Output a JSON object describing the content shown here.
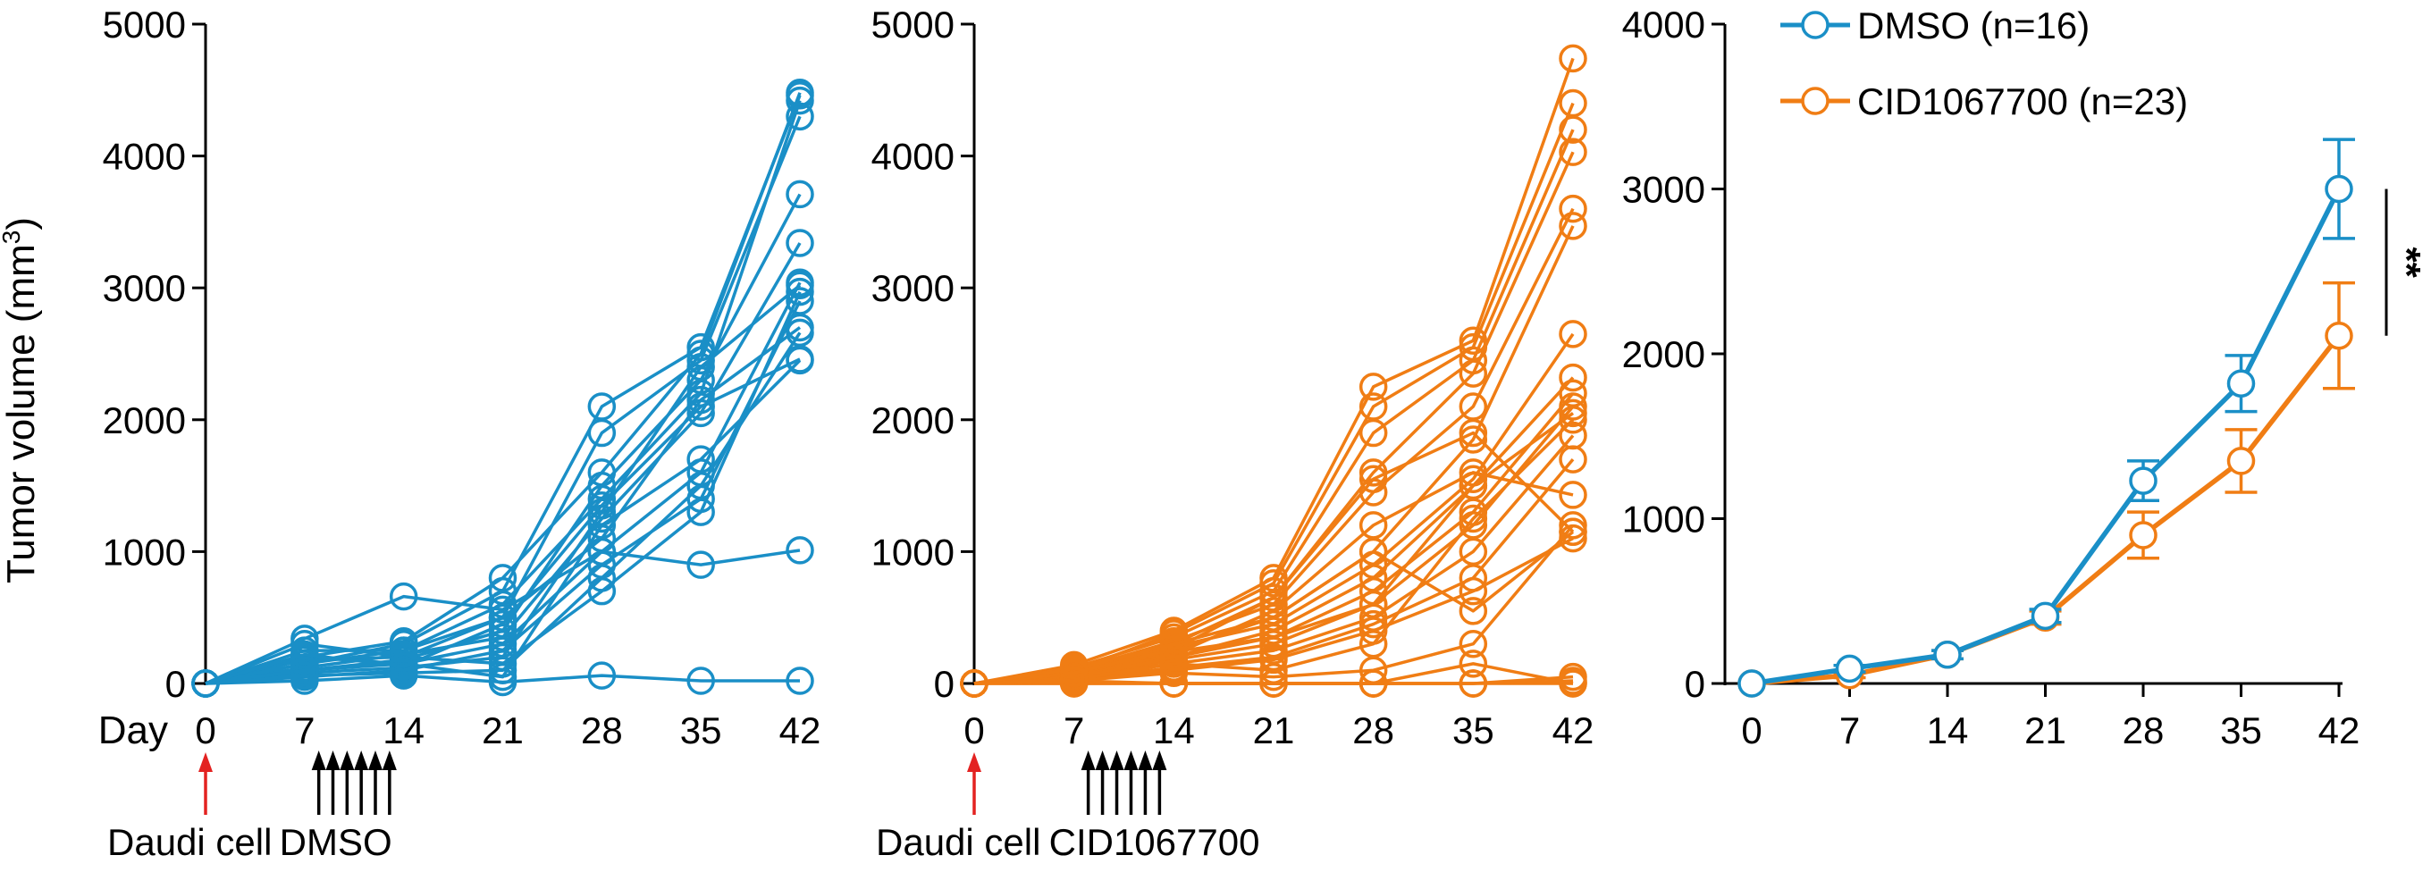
{
  "figure": {
    "ylabel_main": "Tumor volume (mm",
    "ylabel_sup": "3",
    "ylabel_close": ")",
    "day_label": "Day"
  },
  "colors": {
    "dmso": "#1a8fc7",
    "cid": "#f07d14",
    "arrow_red": "#e32221",
    "axis": "#000000"
  },
  "chart_data": [
    {
      "type": "line",
      "panel": "left",
      "color": "dmso",
      "x": [
        0,
        7,
        14,
        21,
        28,
        35,
        42
      ],
      "xlim": [
        0,
        42
      ],
      "ylim": [
        0,
        5000
      ],
      "yticks": [
        0,
        1000,
        2000,
        3000,
        4000,
        5000
      ],
      "grid": false,
      "annotation": {
        "cells": "Daudi cell",
        "treatment": "DMSO"
      },
      "treatment_days": [
        8,
        9,
        10,
        11,
        12,
        13
      ],
      "series": [
        {
          "values": [
            0,
            20,
            60,
            10,
            60,
            20,
            20
          ]
        },
        {
          "values": [
            0,
            340,
            660,
            560,
            1000,
            900,
            1010
          ]
        },
        {
          "values": [
            0,
            200,
            320,
            800,
            1600,
            2500,
            4480
          ]
        },
        {
          "values": [
            0,
            250,
            250,
            600,
            1400,
            2200,
            4420
          ]
        },
        {
          "values": [
            0,
            150,
            300,
            700,
            2100,
            2550,
            4460
          ]
        },
        {
          "values": [
            0,
            180,
            200,
            500,
            1900,
            2450,
            4300
          ]
        },
        {
          "values": [
            0,
            100,
            180,
            400,
            1500,
            2300,
            3710
          ]
        },
        {
          "values": [
            0,
            120,
            220,
            350,
            1250,
            2050,
            3340
          ]
        },
        {
          "values": [
            0,
            200,
            150,
            300,
            1000,
            1600,
            3040
          ]
        },
        {
          "values": [
            0,
            80,
            120,
            200,
            1300,
            2400,
            3020
          ]
        },
        {
          "values": [
            0,
            300,
            200,
            150,
            700,
            1300,
            2970
          ]
        },
        {
          "values": [
            0,
            50,
            100,
            250,
            900,
            1400,
            2900
          ]
        },
        {
          "values": [
            0,
            150,
            250,
            500,
            1100,
            2150,
            2700
          ]
        },
        {
          "values": [
            0,
            60,
            80,
            100,
            800,
            1500,
            2660
          ]
        },
        {
          "values": [
            0,
            100,
            150,
            50,
            1200,
            1700,
            2450
          ]
        },
        {
          "values": [
            0,
            220,
            130,
            450,
            1350,
            2100,
            2460
          ]
        }
      ]
    },
    {
      "type": "line",
      "panel": "middle",
      "color": "cid",
      "x": [
        0,
        7,
        14,
        21,
        28,
        35,
        42
      ],
      "xlim": [
        0,
        42
      ],
      "ylim": [
        0,
        5000
      ],
      "yticks": [
        0,
        1000,
        2000,
        3000,
        4000,
        5000
      ],
      "grid": false,
      "annotation": {
        "cells": "Daudi cell",
        "treatment": "CID1067700"
      },
      "treatment_days": [
        8,
        9,
        10,
        11,
        12,
        13
      ],
      "series": [
        {
          "values": [
            0,
            0,
            0,
            0,
            0,
            0,
            0
          ]
        },
        {
          "values": [
            0,
            0,
            0,
            0,
            0,
            0,
            50
          ]
        },
        {
          "values": [
            0,
            10,
            0,
            0,
            0,
            0,
            20
          ]
        },
        {
          "values": [
            0,
            20,
            0,
            0,
            0,
            150,
            0
          ]
        },
        {
          "values": [
            0,
            140,
            400,
            800,
            2250,
            2600,
            4740
          ]
        },
        {
          "values": [
            0,
            100,
            380,
            760,
            2100,
            2550,
            4400
          ]
        },
        {
          "values": [
            0,
            120,
            350,
            700,
            1900,
            2450,
            4200
          ]
        },
        {
          "values": [
            0,
            80,
            300,
            650,
            1600,
            2350,
            4030
          ]
        },
        {
          "values": [
            0,
            100,
            320,
            600,
            1450,
            2100,
            3600
          ]
        },
        {
          "values": [
            0,
            60,
            250,
            500,
            1000,
            1850,
            3470
          ]
        },
        {
          "values": [
            0,
            90,
            280,
            450,
            900,
            1550,
            2650
          ]
        },
        {
          "values": [
            0,
            50,
            200,
            400,
            800,
            1500,
            2320
          ]
        },
        {
          "values": [
            0,
            70,
            240,
            350,
            700,
            1300,
            2200
          ]
        },
        {
          "values": [
            0,
            40,
            180,
            300,
            600,
            1200,
            2100
          ]
        },
        {
          "values": [
            0,
            60,
            150,
            250,
            500,
            1000,
            1880
          ]
        },
        {
          "values": [
            0,
            30,
            120,
            200,
            450,
            800,
            1700
          ]
        },
        {
          "values": [
            0,
            50,
            220,
            550,
            1200,
            1600,
            1430
          ]
        },
        {
          "values": [
            0,
            80,
            260,
            650,
            1550,
            1900,
            1150
          ]
        },
        {
          "values": [
            0,
            20,
            100,
            180,
            400,
            700,
            1100
          ]
        },
        {
          "values": [
            0,
            110,
            300,
            500,
            1000,
            550,
            1150
          ]
        },
        {
          "values": [
            0,
            40,
            200,
            350,
            600,
            1500,
            2050
          ]
        },
        {
          "values": [
            0,
            30,
            150,
            100,
            300,
            1250,
            2000
          ]
        },
        {
          "values": [
            0,
            20,
            80,
            50,
            100,
            300,
            1200
          ]
        }
      ]
    },
    {
      "type": "line",
      "panel": "right",
      "x": [
        0,
        7,
        14,
        21,
        28,
        35,
        42
      ],
      "xlim": [
        0,
        42
      ],
      "ylim": [
        0,
        4000
      ],
      "yticks": [
        0,
        1000,
        2000,
        3000,
        4000
      ],
      "grid": false,
      "legend_placement": "top-right",
      "significance": "**",
      "series": [
        {
          "name": "DMSO (n=16)",
          "color": "dmso",
          "values": [
            0,
            90,
            175,
            410,
            1230,
            1820,
            3000
          ],
          "errors": [
            0,
            20,
            25,
            40,
            120,
            170,
            300
          ]
        },
        {
          "name": "CID1067700 (n=23)",
          "color": "cid",
          "values": [
            0,
            50,
            175,
            400,
            900,
            1350,
            2110
          ],
          "errors": [
            0,
            15,
            25,
            40,
            140,
            190,
            320
          ]
        }
      ]
    }
  ]
}
